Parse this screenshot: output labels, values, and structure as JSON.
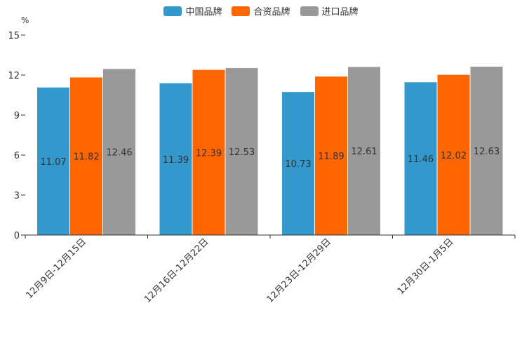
{
  "chart_data": {
    "type": "bar",
    "title": "",
    "unit": "%",
    "xlabel": "",
    "ylabel": "%",
    "ylim": [
      0,
      15
    ],
    "yticks": [
      0,
      3,
      6,
      9,
      12,
      15
    ],
    "categories": [
      "12月9日-12月15日",
      "12月16日-12月22日",
      "12月23日-12月29日",
      "12月30日-1月5日"
    ],
    "series": [
      {
        "name": "中国品牌",
        "color": "#3399cc",
        "values": [
          11.07,
          11.39,
          10.73,
          11.46
        ]
      },
      {
        "name": "合资品牌",
        "color": "#ff6600",
        "values": [
          11.82,
          12.39,
          11.89,
          12.02
        ]
      },
      {
        "name": "进口品牌",
        "color": "#999999",
        "values": [
          12.46,
          12.53,
          12.61,
          12.63
        ]
      }
    ],
    "legend_position": "top-center",
    "grid": false
  }
}
